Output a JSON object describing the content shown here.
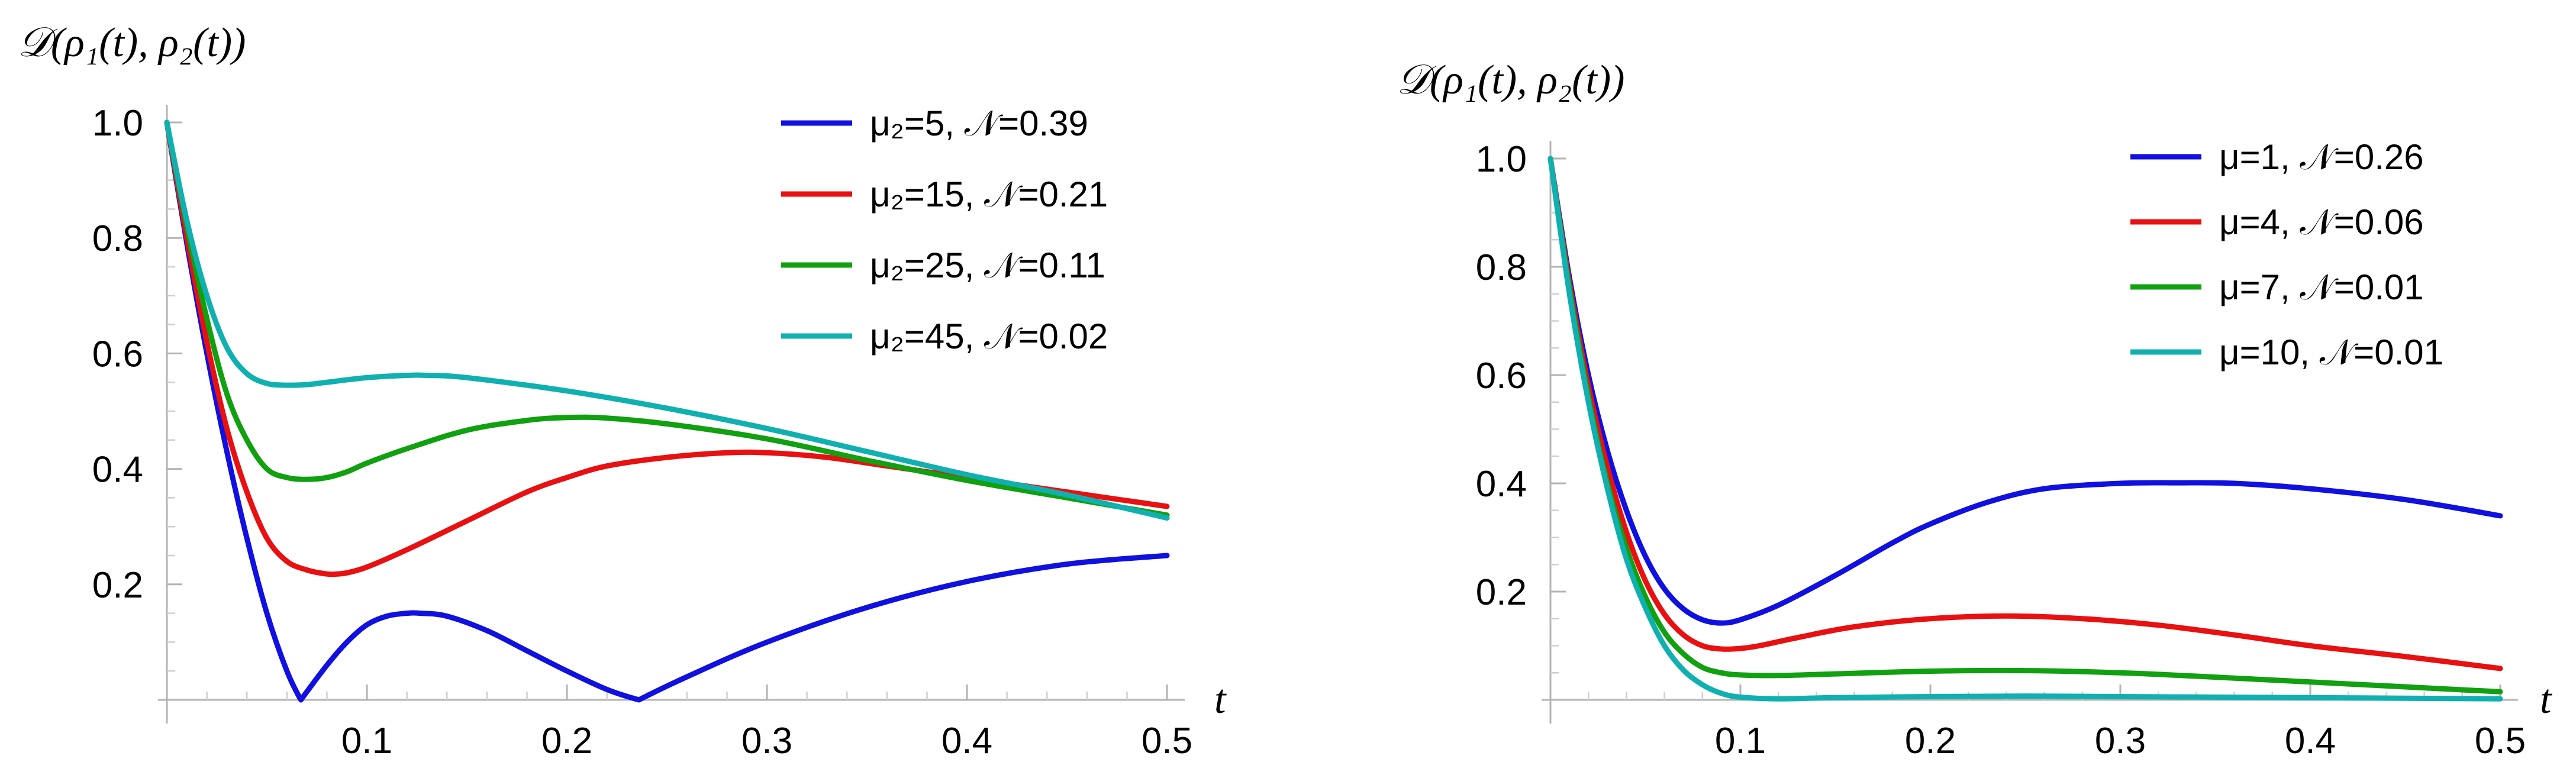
{
  "chart_data": [
    {
      "type": "line",
      "title": "",
      "ylabel": "𝒟(ρ₁(t), ρ₂(t))",
      "xlabel": "t",
      "xlim": [
        0,
        0.5
      ],
      "ylim": [
        0,
        1.0
      ],
      "x_ticks": [
        0.1,
        0.2,
        0.3,
        0.4,
        0.5
      ],
      "x_tick_labels": [
        "0.1",
        "0.2",
        "0.3",
        "0.4",
        "0.5"
      ],
      "y_ticks": [
        0.2,
        0.4,
        0.6,
        0.8,
        1.0
      ],
      "y_tick_labels": [
        "0.2",
        "0.4",
        "0.6",
        "0.8",
        "1.0"
      ],
      "legend_position": "top-right",
      "series": [
        {
          "name": "μ₂=5, 𝒩=0.39",
          "color": "#1010e0",
          "x": [
            0,
            0.01,
            0.02,
            0.03,
            0.04,
            0.05,
            0.06,
            0.067,
            0.08,
            0.09,
            0.1,
            0.11,
            0.12,
            0.127,
            0.14,
            0.16,
            0.18,
            0.2,
            0.22,
            0.236,
            0.26,
            0.3,
            0.35,
            0.4,
            0.45,
            0.5
          ],
          "y": [
            1.0,
            0.79,
            0.6,
            0.43,
            0.28,
            0.15,
            0.05,
            0.0,
            0.06,
            0.1,
            0.13,
            0.145,
            0.15,
            0.15,
            0.145,
            0.12,
            0.085,
            0.05,
            0.018,
            0.0,
            0.04,
            0.1,
            0.16,
            0.205,
            0.235,
            0.25
          ]
        },
        {
          "name": "μ₂=15, 𝒩=0.21",
          "color": "#e81010",
          "x": [
            0,
            0.01,
            0.02,
            0.03,
            0.04,
            0.05,
            0.06,
            0.07,
            0.08,
            0.085,
            0.09,
            0.1,
            0.12,
            0.15,
            0.18,
            0.2,
            0.22,
            0.25,
            0.28,
            0.3,
            0.33,
            0.36,
            0.4,
            0.45,
            0.5
          ],
          "y": [
            1.0,
            0.8,
            0.62,
            0.47,
            0.36,
            0.28,
            0.24,
            0.225,
            0.218,
            0.218,
            0.22,
            0.23,
            0.26,
            0.31,
            0.36,
            0.385,
            0.405,
            0.42,
            0.428,
            0.428,
            0.42,
            0.405,
            0.385,
            0.36,
            0.335
          ]
        },
        {
          "name": "μ₂=25, 𝒩=0.11",
          "color": "#10a010",
          "x": [
            0,
            0.01,
            0.02,
            0.03,
            0.04,
            0.05,
            0.06,
            0.07,
            0.08,
            0.09,
            0.1,
            0.12,
            0.15,
            0.18,
            0.2,
            0.22,
            0.25,
            0.3,
            0.35,
            0.4,
            0.45,
            0.5
          ],
          "y": [
            1.0,
            0.82,
            0.66,
            0.53,
            0.45,
            0.4,
            0.385,
            0.382,
            0.385,
            0.395,
            0.41,
            0.435,
            0.467,
            0.484,
            0.489,
            0.488,
            0.478,
            0.452,
            0.415,
            0.38,
            0.35,
            0.32
          ]
        },
        {
          "name": "μ₂=45, 𝒩=0.02",
          "color": "#10b0b0",
          "x": [
            0,
            0.01,
            0.02,
            0.03,
            0.04,
            0.05,
            0.06,
            0.07,
            0.08,
            0.1,
            0.12,
            0.13,
            0.15,
            0.2,
            0.25,
            0.3,
            0.35,
            0.4,
            0.45,
            0.5
          ],
          "y": [
            1.0,
            0.83,
            0.7,
            0.61,
            0.565,
            0.548,
            0.545,
            0.546,
            0.55,
            0.558,
            0.562,
            0.562,
            0.558,
            0.535,
            0.505,
            0.47,
            0.43,
            0.39,
            0.355,
            0.315
          ]
        }
      ]
    },
    {
      "type": "line",
      "title": "",
      "ylabel": "𝒟(ρ₁(t), ρ₂(t))",
      "xlabel": "t",
      "xlim": [
        0,
        0.5
      ],
      "ylim": [
        0,
        1.0
      ],
      "x_ticks": [
        0.1,
        0.2,
        0.3,
        0.4,
        0.5
      ],
      "x_tick_labels": [
        "0.1",
        "0.2",
        "0.3",
        "0.4",
        "0.5"
      ],
      "y_ticks": [
        0.2,
        0.4,
        0.6,
        0.8,
        1.0
      ],
      "y_tick_labels": [
        "0.2",
        "0.4",
        "0.6",
        "0.8",
        "1.0"
      ],
      "legend_position": "top-right",
      "series": [
        {
          "name": "μ=1, 𝒩=0.26",
          "color": "#1010e0",
          "x": [
            0,
            0.01,
            0.02,
            0.03,
            0.04,
            0.05,
            0.06,
            0.07,
            0.08,
            0.09,
            0.1,
            0.12,
            0.15,
            0.18,
            0.2,
            0.23,
            0.26,
            0.3,
            0.33,
            0.36,
            0.4,
            0.45,
            0.5
          ],
          "y": [
            1.0,
            0.78,
            0.6,
            0.46,
            0.35,
            0.265,
            0.205,
            0.168,
            0.148,
            0.142,
            0.148,
            0.175,
            0.23,
            0.29,
            0.325,
            0.365,
            0.39,
            0.4,
            0.401,
            0.4,
            0.39,
            0.37,
            0.34
          ]
        },
        {
          "name": "μ=4, 𝒩=0.06",
          "color": "#e81010",
          "x": [
            0,
            0.01,
            0.02,
            0.03,
            0.04,
            0.05,
            0.06,
            0.07,
            0.08,
            0.09,
            0.1,
            0.11,
            0.13,
            0.16,
            0.2,
            0.24,
            0.28,
            0.32,
            0.36,
            0.4,
            0.45,
            0.5
          ],
          "y": [
            1.0,
            0.77,
            0.58,
            0.43,
            0.31,
            0.22,
            0.158,
            0.12,
            0.1,
            0.094,
            0.095,
            0.1,
            0.115,
            0.135,
            0.15,
            0.155,
            0.15,
            0.138,
            0.12,
            0.1,
            0.08,
            0.058
          ]
        },
        {
          "name": "μ=7, 𝒩=0.01",
          "color": "#10a010",
          "x": [
            0,
            0.01,
            0.02,
            0.03,
            0.04,
            0.05,
            0.06,
            0.07,
            0.08,
            0.09,
            0.1,
            0.12,
            0.15,
            0.2,
            0.25,
            0.3,
            0.35,
            0.4,
            0.45,
            0.5
          ],
          "y": [
            1.0,
            0.76,
            0.56,
            0.4,
            0.28,
            0.19,
            0.125,
            0.085,
            0.06,
            0.05,
            0.046,
            0.045,
            0.048,
            0.053,
            0.054,
            0.05,
            0.042,
            0.033,
            0.024,
            0.015
          ]
        },
        {
          "name": "μ=10, 𝒩=0.01",
          "color": "#10b0b0",
          "x": [
            0,
            0.01,
            0.02,
            0.03,
            0.04,
            0.05,
            0.06,
            0.07,
            0.08,
            0.09,
            0.1,
            0.12,
            0.15,
            0.2,
            0.25,
            0.3,
            0.35,
            0.4,
            0.45,
            0.5
          ],
          "y": [
            1.0,
            0.75,
            0.55,
            0.39,
            0.26,
            0.17,
            0.1,
            0.055,
            0.028,
            0.012,
            0.005,
            0.002,
            0.004,
            0.006,
            0.007,
            0.006,
            0.005,
            0.004,
            0.003,
            0.002
          ]
        }
      ]
    }
  ]
}
